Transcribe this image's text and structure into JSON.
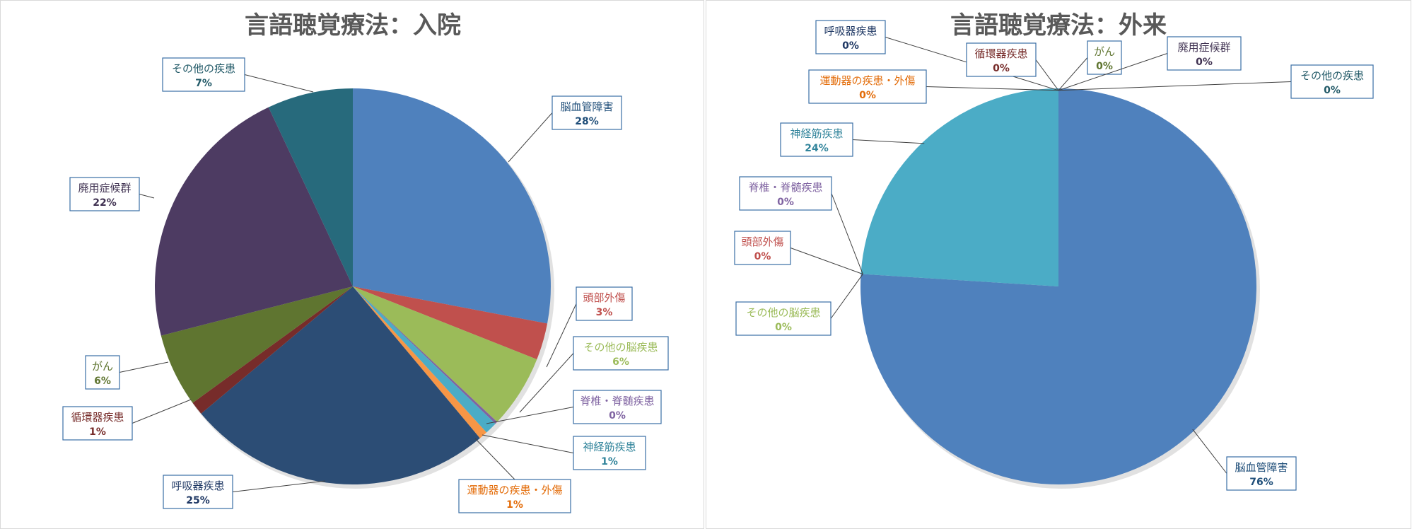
{
  "chart_data": [
    {
      "type": "pie",
      "title": "言語聴覚療法：入院",
      "slices": [
        {
          "label": "脳血管障害",
          "value": 28,
          "pct": "28%",
          "color": "#4F81BD",
          "label_color": "#1F4E79"
        },
        {
          "label": "頭部外傷",
          "value": 3,
          "pct": "3%",
          "color": "#C0504D",
          "label_color": "#C0504D"
        },
        {
          "label": "その他の脳疾患",
          "value": 6,
          "pct": "6%",
          "color": "#9BBB59",
          "label_color": "#9BBB59"
        },
        {
          "label": "脊椎・脊髄疾患",
          "value": 0.2,
          "pct": "0%",
          "color": "#8064A2",
          "label_color": "#8064A2"
        },
        {
          "label": "神経筋疾患",
          "value": 1,
          "pct": "1%",
          "color": "#4BACC6",
          "label_color": "#31849B"
        },
        {
          "label": "運動器の疾患・外傷",
          "value": 0.7,
          "pct": "1%",
          "color": "#F79646",
          "label_color": "#E36C09"
        },
        {
          "label": "呼吸器疾患",
          "value": 25,
          "pct": "25%",
          "color": "#2C4D75",
          "label_color": "#1F3864"
        },
        {
          "label": "循環器疾患",
          "value": 1.1,
          "pct": "1%",
          "color": "#772C2A",
          "label_color": "#772C2A"
        },
        {
          "label": "がん",
          "value": 6,
          "pct": "6%",
          "color": "#5F7530",
          "label_color": "#5F7530"
        },
        {
          "label": "廃用症候群",
          "value": 22,
          "pct": "22%",
          "color": "#4D3B62",
          "label_color": "#3F3151"
        },
        {
          "label": "その他の疾患",
          "value": 7,
          "pct": "7%",
          "color": "#276A7C",
          "label_color": "#215967"
        }
      ]
    },
    {
      "type": "pie",
      "title": "言語聴覚療法：外来",
      "slices": [
        {
          "label": "脳血管障害",
          "value": 76,
          "pct": "76%",
          "color": "#4F81BD",
          "label_color": "#1F4E79"
        },
        {
          "label": "頭部外傷",
          "value": 0,
          "pct": "0%",
          "color": "#C0504D",
          "label_color": "#C0504D"
        },
        {
          "label": "その他の脳疾患",
          "value": 0,
          "pct": "0%",
          "color": "#9BBB59",
          "label_color": "#9BBB59"
        },
        {
          "label": "脊椎・脊髄疾患",
          "value": 0,
          "pct": "0%",
          "color": "#8064A2",
          "label_color": "#8064A2"
        },
        {
          "label": "神経筋疾患",
          "value": 24,
          "pct": "24%",
          "color": "#4BACC6",
          "label_color": "#31849B"
        },
        {
          "label": "運動器の疾患・外傷",
          "value": 0,
          "pct": "0%",
          "color": "#F79646",
          "label_color": "#E36C09"
        },
        {
          "label": "呼吸器疾患",
          "value": 0,
          "pct": "0%",
          "color": "#2C4D75",
          "label_color": "#1F3864"
        },
        {
          "label": "循環器疾患",
          "value": 0,
          "pct": "0%",
          "color": "#772C2A",
          "label_color": "#772C2A"
        },
        {
          "label": "がん",
          "value": 0,
          "pct": "0%",
          "color": "#5F7530",
          "label_color": "#5F7530"
        },
        {
          "label": "廃用症候群",
          "value": 0,
          "pct": "0%",
          "color": "#4D3B62",
          "label_color": "#3F3151"
        },
        {
          "label": "その他の疾患",
          "value": 0,
          "pct": "0%",
          "color": "#276A7C",
          "label_color": "#215967"
        }
      ]
    }
  ]
}
